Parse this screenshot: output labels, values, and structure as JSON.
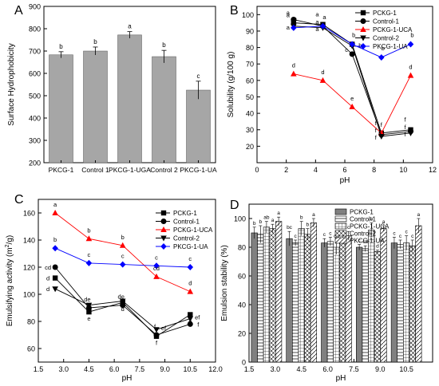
{
  "figure": {
    "panel_letters": [
      "A",
      "B",
      "C",
      "D"
    ],
    "colors": {
      "axis": "#000000",
      "grey_bar": "#a6a6a6",
      "pckg1": "#000000",
      "control1": "#000000",
      "pckg1uca": "#ff0000",
      "control2": "#000000",
      "pkcg1ua": "#0000ff"
    }
  },
  "chart_data": [
    {
      "panel": "A",
      "type": "bar",
      "ylabel": "Surface Hydrophobicity",
      "xlabel": "",
      "ylim": [
        200,
        900
      ],
      "yticks": [
        200,
        300,
        400,
        500,
        600,
        700,
        800,
        900
      ],
      "categories": [
        "PKCG-1",
        "Control 1",
        "PKCG-1-UGA",
        "Control 2",
        "PKCG-1-UA"
      ],
      "values": [
        683,
        700,
        772,
        675,
        525
      ],
      "errors": [
        14,
        18,
        15,
        28,
        40
      ],
      "letters": [
        "b",
        "b",
        "a",
        "b",
        "c"
      ],
      "color": "#a6a6a6"
    },
    {
      "panel": "B",
      "type": "line",
      "xlabel": "pH",
      "ylabel": "Solubility (g/100 g)",
      "xlim": [
        0,
        12
      ],
      "ylim": [
        10,
        105
      ],
      "xticks": [
        0,
        2,
        4,
        6,
        8,
        10,
        12
      ],
      "yticks": [
        20,
        30,
        40,
        50,
        60,
        70,
        80,
        90,
        100
      ],
      "x": [
        2.5,
        4.5,
        6.5,
        8.5,
        10.5
      ],
      "legend_position": "top-right",
      "series": [
        {
          "name": "PCKG-1",
          "marker": "square",
          "color": "#000000",
          "values": [
            95,
            94,
            82,
            28,
            30
          ],
          "letters": [
            "a",
            "a",
            "",
            "f",
            "f"
          ]
        },
        {
          "name": "Control-1",
          "marker": "circle",
          "color": "#000000",
          "values": [
            97,
            93,
            76,
            27,
            29
          ],
          "letters": [
            "a",
            "a",
            "c",
            "f",
            "f"
          ]
        },
        {
          "name": "PCKG-1-UCA",
          "marker": "triangle-up",
          "color": "#ff0000",
          "values": [
            64,
            60,
            44,
            28,
            63
          ],
          "letters": [
            "d",
            "d",
            "e",
            "f",
            "d"
          ]
        },
        {
          "name": "Control-2",
          "marker": "triangle-down",
          "color": "#000000",
          "values": [
            93,
            92,
            81,
            26,
            28
          ],
          "letters": [
            "a",
            "a",
            "bc",
            "f",
            "f"
          ]
        },
        {
          "name": "PKCG-1-UA",
          "marker": "diamond",
          "color": "#0000ff",
          "values": [
            92,
            93,
            82,
            74,
            82
          ],
          "letters": [
            "a",
            "a",
            "b",
            "b",
            "b"
          ]
        }
      ]
    },
    {
      "panel": "C",
      "type": "line",
      "xlabel": "pH",
      "ylabel_main": "Emulsifying activity (m",
      "ylabel_sup": "2",
      "ylabel_end": "/g)",
      "xlim": [
        1.5,
        12.0
      ],
      "ylim": [
        50,
        170
      ],
      "xticks": [
        1.5,
        3.0,
        4.5,
        6.0,
        7.5,
        9.0,
        10.5,
        12.0
      ],
      "xtick_labels": [
        "1.5",
        "3.0",
        "4.5",
        "6.0",
        "7.5",
        "9.0",
        "10.5",
        "12.0"
      ],
      "yticks": [
        60,
        80,
        100,
        120,
        140,
        160
      ],
      "x": [
        2.5,
        4.5,
        6.5,
        8.5,
        10.5
      ],
      "legend_position": "top-right",
      "series": [
        {
          "name": "PCKG-1",
          "marker": "square",
          "color": "#000000",
          "values": [
            112,
            87,
            94,
            69,
            85
          ],
          "letters": [
            "d",
            "e",
            "d",
            "f",
            "e"
          ]
        },
        {
          "name": "Control-1",
          "marker": "circle",
          "color": "#000000",
          "values": [
            120,
            90,
            92,
            70,
            78
          ],
          "letters": [
            "cd",
            "de",
            "de",
            "f",
            "f"
          ]
        },
        {
          "name": "PCKG-1-UCA",
          "marker": "triangle-up",
          "color": "#ff0000",
          "values": [
            160,
            141,
            136,
            113,
            102
          ],
          "letters": [
            "a",
            "b",
            "b",
            "cd",
            "d"
          ]
        },
        {
          "name": "Control-2",
          "marker": "triangle-down",
          "color": "#000000",
          "values": [
            104,
            92,
            95,
            74,
            82
          ],
          "letters": [
            "d",
            "",
            "",
            "ef",
            "ef"
          ]
        },
        {
          "name": "PKCG-1-UA",
          "marker": "diamond",
          "color": "#0000ff",
          "values": [
            134,
            123,
            122,
            121,
            120
          ],
          "letters": [
            "b",
            "c",
            "c",
            "c",
            "c"
          ]
        }
      ]
    },
    {
      "panel": "D",
      "type": "bar",
      "xlabel": "pH",
      "ylabel": "Emulsion stability (%)",
      "xlim": [
        1.5,
        12.0
      ],
      "ylim": [
        0,
        110
      ],
      "xticks": [
        1.5,
        3.0,
        4.5,
        6.0,
        7.5,
        9.0,
        10.5
      ],
      "xtick_labels": [
        "1.5",
        "3.0",
        "4.5",
        "6.0",
        "7.5",
        "9.0",
        "10.5"
      ],
      "yticks": [
        0,
        20,
        40,
        60,
        80,
        100
      ],
      "x": [
        2.5,
        4.5,
        6.5,
        8.5,
        10.5
      ],
      "legend_position": "top-right",
      "series": [
        {
          "name": "PCKG-1",
          "pattern": "solid-grey",
          "values": [
            90,
            86,
            83,
            80,
            83
          ],
          "errors": [
            4,
            5,
            3,
            2,
            4
          ],
          "letters": [
            "b",
            "bc",
            "c",
            "c",
            "c"
          ]
        },
        {
          "name": "Control-1",
          "pattern": "horizontal",
          "values": [
            89,
            83,
            84,
            79,
            82
          ],
          "errors": [
            6,
            2,
            3,
            2,
            3
          ],
          "letters": [
            "b",
            "c",
            "c",
            "cd",
            "c"
          ]
        },
        {
          "name": "PCKG-1-UCA",
          "pattern": "grid",
          "values": [
            94,
            93,
            80,
            92,
            83
          ],
          "errors": [
            4,
            5,
            5,
            5,
            5
          ],
          "letters": [
            "ab",
            "b",
            "cd",
            "b",
            "c"
          ]
        },
        {
          "name": "Control-2",
          "pattern": "crosshatch",
          "values": [
            93,
            89,
            85,
            77,
            81
          ],
          "errors": [
            3,
            4,
            3,
            1,
            4
          ],
          "letters": [
            "a",
            "b",
            "c",
            "d",
            "c"
          ]
        },
        {
          "name": "PKCG-1-UA",
          "pattern": "diagonal",
          "values": [
            98,
            97,
            88,
            93,
            95
          ],
          "errors": [
            3,
            3,
            3,
            2,
            5
          ],
          "letters": [
            "a",
            "a",
            "c",
            "a",
            "a"
          ]
        }
      ]
    }
  ]
}
